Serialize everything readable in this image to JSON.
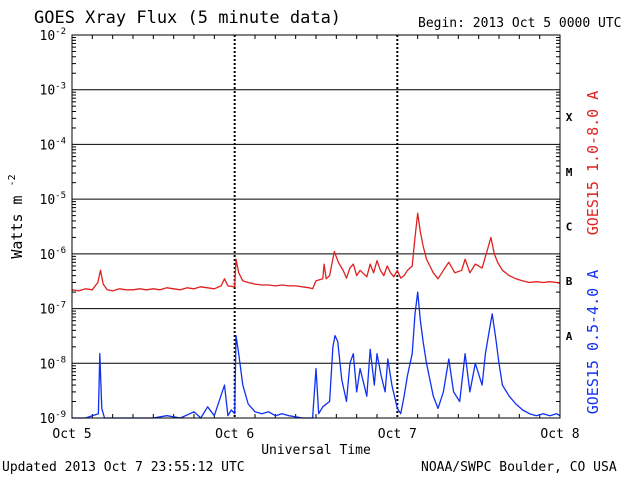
{
  "header": {
    "title": "GOES Xray Flux (5 minute data)",
    "begin": "Begin:  2013 Oct 5 0000 UTC"
  },
  "footer": {
    "updated": "Updated 2013 Oct  7 23:55:12 UTC",
    "agency": "NOAA/SWPC Boulder, CO USA"
  },
  "chart_data": {
    "type": "line",
    "title": "GOES Xray Flux (5 minute data)",
    "xlabel": "Universal Time",
    "ylabel": "Watts m",
    "ylabel_sup": "-2",
    "yscale": "log",
    "ylim": [
      1e-09,
      0.01
    ],
    "xlim": [
      0,
      72
    ],
    "x_unit": "hours since 2013 Oct 5 0000 UTC",
    "x_ticks": [
      {
        "x": 0,
        "label": "Oct 5"
      },
      {
        "x": 24,
        "label": "Oct 6"
      },
      {
        "x": 48,
        "label": "Oct 7"
      },
      {
        "x": 72,
        "label": "Oct 8"
      }
    ],
    "y_ticks": [
      {
        "exp": -9,
        "base": "10",
        "sup": "-9"
      },
      {
        "exp": -8,
        "base": "10",
        "sup": "-8"
      },
      {
        "exp": -7,
        "base": "10",
        "sup": "-7"
      },
      {
        "exp": -6,
        "base": "10",
        "sup": "-6"
      },
      {
        "exp": -5,
        "base": "10",
        "sup": "-5"
      },
      {
        "exp": -4,
        "base": "10",
        "sup": "-4"
      },
      {
        "exp": -3,
        "base": "10",
        "sup": "-3"
      },
      {
        "exp": -2,
        "base": "10",
        "sup": "-2"
      }
    ],
    "flare_classes": [
      {
        "label": "A",
        "exp": -7.5
      },
      {
        "label": "B",
        "exp": -6.5
      },
      {
        "label": "C",
        "exp": -5.5
      },
      {
        "label": "M",
        "exp": -4.5
      },
      {
        "label": "X",
        "exp": -3.5
      }
    ],
    "grid": true,
    "series": [
      {
        "name": "GOES15 1.0-8.0 A",
        "color": "#e02020",
        "points": [
          [
            0,
            2.2e-07
          ],
          [
            1,
            2.1e-07
          ],
          [
            2,
            2.3e-07
          ],
          [
            3,
            2.2e-07
          ],
          [
            3.8,
            3e-07
          ],
          [
            4.2,
            5e-07
          ],
          [
            4.6,
            2.8e-07
          ],
          [
            5.2,
            2.2e-07
          ],
          [
            6,
            2.1e-07
          ],
          [
            7,
            2.3e-07
          ],
          [
            8,
            2.2e-07
          ],
          [
            9,
            2.2e-07
          ],
          [
            10,
            2.3e-07
          ],
          [
            11,
            2.2e-07
          ],
          [
            12,
            2.3e-07
          ],
          [
            13,
            2.2e-07
          ],
          [
            14,
            2.4e-07
          ],
          [
            15,
            2.3e-07
          ],
          [
            16,
            2.2e-07
          ],
          [
            17,
            2.4e-07
          ],
          [
            18,
            2.3e-07
          ],
          [
            19,
            2.5e-07
          ],
          [
            20,
            2.4e-07
          ],
          [
            21,
            2.3e-07
          ],
          [
            22,
            2.6e-07
          ],
          [
            22.5,
            3.5e-07
          ],
          [
            23,
            2.6e-07
          ],
          [
            24,
            2.5e-07
          ],
          [
            24.2,
            8e-07
          ],
          [
            24.6,
            4.5e-07
          ],
          [
            25.2,
            3.2e-07
          ],
          [
            26,
            3e-07
          ],
          [
            27,
            2.8e-07
          ],
          [
            28,
            2.7e-07
          ],
          [
            29,
            2.7e-07
          ],
          [
            30,
            2.6e-07
          ],
          [
            31,
            2.7e-07
          ],
          [
            32,
            2.6e-07
          ],
          [
            33,
            2.6e-07
          ],
          [
            34,
            2.5e-07
          ],
          [
            35,
            2.4e-07
          ],
          [
            35.5,
            2.3e-07
          ],
          [
            36,
            3.2e-07
          ],
          [
            37,
            3.5e-07
          ],
          [
            37.2,
            6.5e-07
          ],
          [
            37.5,
            3.5e-07
          ],
          [
            38,
            4e-07
          ],
          [
            38.7,
            1.1e-06
          ],
          [
            39.3,
            7e-07
          ],
          [
            40,
            5e-07
          ],
          [
            40.5,
            3.6e-07
          ],
          [
            41,
            5.5e-07
          ],
          [
            41.5,
            6.5e-07
          ],
          [
            42,
            4e-07
          ],
          [
            42.5,
            5e-07
          ],
          [
            43.5,
            3.8e-07
          ],
          [
            44,
            6.5e-07
          ],
          [
            44.5,
            4.5e-07
          ],
          [
            45,
            7.5e-07
          ],
          [
            45.5,
            5e-07
          ],
          [
            46,
            4e-07
          ],
          [
            46.5,
            6e-07
          ],
          [
            47,
            4.5e-07
          ],
          [
            47.5,
            3.8e-07
          ],
          [
            48,
            5e-07
          ],
          [
            48.5,
            3.6e-07
          ],
          [
            49,
            4e-07
          ],
          [
            49.5,
            5e-07
          ],
          [
            50.2,
            6e-07
          ],
          [
            50.6,
            2e-06
          ],
          [
            51,
            5.5e-06
          ],
          [
            51.4,
            2.5e-06
          ],
          [
            51.8,
            1.4e-06
          ],
          [
            52.3,
            8e-07
          ],
          [
            52.8,
            6e-07
          ],
          [
            53.3,
            4.5e-07
          ],
          [
            54,
            3.5e-07
          ],
          [
            54.8,
            5e-07
          ],
          [
            55.6,
            7e-07
          ],
          [
            56.5,
            4.5e-07
          ],
          [
            57.5,
            5e-07
          ],
          [
            58,
            8e-07
          ],
          [
            58.7,
            4.5e-07
          ],
          [
            59.5,
            6.5e-07
          ],
          [
            60.5,
            5.5e-07
          ],
          [
            61.3,
            1.2e-06
          ],
          [
            61.8,
            2e-06
          ],
          [
            62.3,
            1e-06
          ],
          [
            62.8,
            7e-07
          ],
          [
            63.5,
            5e-07
          ],
          [
            64.5,
            4e-07
          ],
          [
            65.5,
            3.5e-07
          ],
          [
            66.5,
            3.2e-07
          ],
          [
            67.5,
            3e-07
          ],
          [
            68.5,
            3.1e-07
          ],
          [
            69.5,
            3e-07
          ],
          [
            70.5,
            3.1e-07
          ],
          [
            71.5,
            3e-07
          ],
          [
            72,
            2.9e-07
          ]
        ]
      },
      {
        "name": "GOES15 0.5-4.0 A",
        "color": "#1030f0",
        "points": [
          [
            0,
            1e-09
          ],
          [
            2,
            1e-09
          ],
          [
            3.9,
            1.2e-09
          ],
          [
            4.1,
            1.5e-08
          ],
          [
            4.4,
            1.5e-09
          ],
          [
            4.8,
            1e-09
          ],
          [
            8,
            1e-09
          ],
          [
            12,
            1e-09
          ],
          [
            14,
            1.1e-09
          ],
          [
            16,
            1e-09
          ],
          [
            18,
            1.3e-09
          ],
          [
            19,
            1e-09
          ],
          [
            20,
            1.6e-09
          ],
          [
            21,
            1.1e-09
          ],
          [
            22.5,
            4e-09
          ],
          [
            23,
            1.1e-09
          ],
          [
            23.5,
            1.4e-09
          ],
          [
            24,
            1.2e-09
          ],
          [
            24.2,
            3.2e-08
          ],
          [
            24.6,
            1.5e-08
          ],
          [
            25.2,
            4e-09
          ],
          [
            26,
            1.8e-09
          ],
          [
            27,
            1.3e-09
          ],
          [
            28,
            1.2e-09
          ],
          [
            29,
            1.3e-09
          ],
          [
            30,
            1.1e-09
          ],
          [
            31,
            1.2e-09
          ],
          [
            32,
            1.1e-09
          ],
          [
            34,
            1e-09
          ],
          [
            35.5,
            1e-09
          ],
          [
            36,
            8e-09
          ],
          [
            36.4,
            1.2e-09
          ],
          [
            37,
            1.6e-09
          ],
          [
            38,
            2e-09
          ],
          [
            38.5,
            2e-08
          ],
          [
            38.8,
            3.2e-08
          ],
          [
            39.2,
            2.5e-08
          ],
          [
            39.8,
            5e-09
          ],
          [
            40.5,
            2e-09
          ],
          [
            41,
            1e-08
          ],
          [
            41.5,
            1.5e-08
          ],
          [
            42,
            3e-09
          ],
          [
            42.5,
            8e-09
          ],
          [
            43.5,
            2.5e-09
          ],
          [
            44,
            1.8e-08
          ],
          [
            44.6,
            4e-09
          ],
          [
            45,
            1.5e-08
          ],
          [
            45.6,
            6e-09
          ],
          [
            46.2,
            3e-09
          ],
          [
            46.6,
            1.2e-08
          ],
          [
            47.2,
            4e-09
          ],
          [
            48,
            1.5e-09
          ],
          [
            48.5,
            1.2e-09
          ],
          [
            49,
            2.5e-09
          ],
          [
            49.5,
            6e-09
          ],
          [
            50.2,
            1.5e-08
          ],
          [
            50.6,
            8e-08
          ],
          [
            51,
            2e-07
          ],
          [
            51.4,
            6e-08
          ],
          [
            51.8,
            2.5e-08
          ],
          [
            52.3,
            1e-08
          ],
          [
            52.8,
            5e-09
          ],
          [
            53.3,
            2.5e-09
          ],
          [
            54,
            1.5e-09
          ],
          [
            54.8,
            3e-09
          ],
          [
            55.6,
            1.2e-08
          ],
          [
            56.3,
            3e-09
          ],
          [
            57.2,
            2e-09
          ],
          [
            58,
            1.5e-08
          ],
          [
            58.7,
            3e-09
          ],
          [
            59.5,
            1e-08
          ],
          [
            60.5,
            4e-09
          ],
          [
            61,
            1.5e-08
          ],
          [
            61.5,
            3.5e-08
          ],
          [
            62,
            8e-08
          ],
          [
            62.5,
            3e-08
          ],
          [
            63,
            1e-08
          ],
          [
            63.5,
            4e-09
          ],
          [
            64.5,
            2.5e-09
          ],
          [
            65.5,
            1.8e-09
          ],
          [
            66.5,
            1.4e-09
          ],
          [
            67.5,
            1.2e-09
          ],
          [
            68.5,
            1.1e-09
          ],
          [
            69.5,
            1.2e-09
          ],
          [
            70.5,
            1.1e-09
          ],
          [
            71.5,
            1.2e-09
          ],
          [
            72,
            1.1e-09
          ]
        ]
      }
    ]
  }
}
